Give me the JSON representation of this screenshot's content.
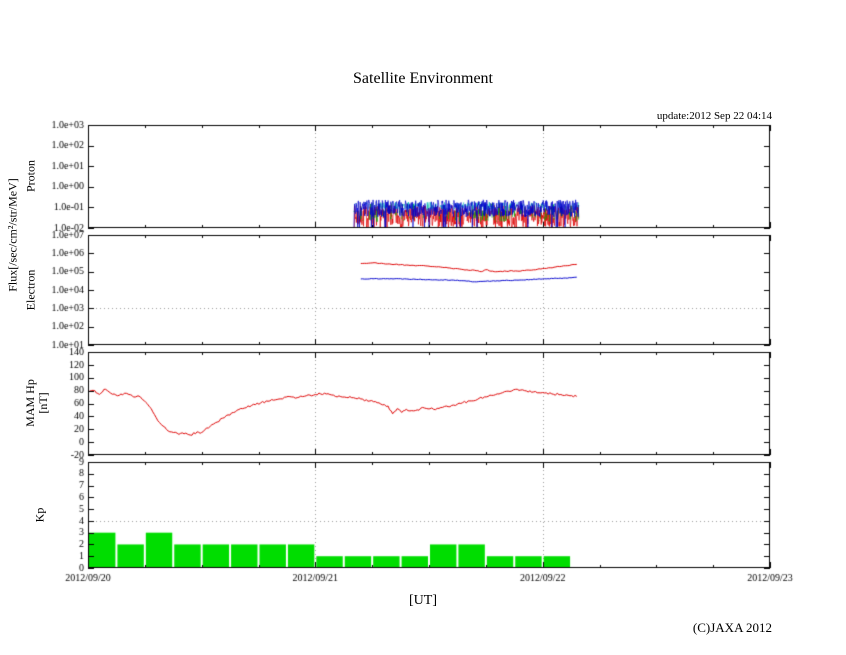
{
  "page": {
    "title": "Satellite Environment",
    "update_text": "update:2012 Sep 22 04:14",
    "x_axis_title": "[UT]",
    "copyright": "(C)JAXA 2012",
    "flux_axis_label": "Flux[/sec/cm²/str/MeV]"
  },
  "chart_data": [
    {
      "type": "line",
      "name": "proton-flux",
      "ylabel": "Proton",
      "yscale": "log",
      "ylim": [
        0.01,
        1000
      ],
      "yticks": [
        {
          "v": 1000,
          "label": "1.0e+03"
        },
        {
          "v": 100,
          "label": "1.0e+02"
        },
        {
          "v": 10,
          "label": "1.0e+01"
        },
        {
          "v": 1,
          "label": "1.0e+00"
        },
        {
          "v": 0.1,
          "label": "1.0e-01"
        },
        {
          "v": 0.01,
          "label": "1.0e-02"
        }
      ],
      "xlim": [
        0,
        3
      ],
      "xtick_values": [
        0,
        1,
        2,
        3
      ],
      "vgrid": [
        1,
        2
      ],
      "hgrid": [],
      "series": [
        {
          "name": "proton-channel-red",
          "color": "#dd0000",
          "style": "noise",
          "x_range": [
            1.17,
            2.16
          ],
          "logy_center": -1.45,
          "logy_spread": 0.55,
          "seed": 7
        },
        {
          "name": "proton-channel-green",
          "color": "#00aa00",
          "style": "noise",
          "x_range": [
            1.17,
            2.16
          ],
          "logy_center": -1.25,
          "logy_spread": 0.45,
          "gap_prob": 0.5,
          "seed": 11
        },
        {
          "name": "proton-channel-cyan",
          "color": "#00bbbb",
          "style": "noise",
          "x_range": [
            1.17,
            2.16
          ],
          "logy_center": -0.92,
          "logy_spread": 0.18,
          "gap_prob": 0.4,
          "seed": 13
        },
        {
          "name": "proton-channel-blue",
          "color": "#0000cc",
          "style": "noise",
          "x_range": [
            1.17,
            2.16
          ],
          "logy_center": -1.05,
          "logy_spread": 0.42,
          "spike_prob": 0.05,
          "spike_logy": -2,
          "seed": 3
        }
      ]
    },
    {
      "type": "line",
      "name": "electron-flux",
      "ylabel": "Electron",
      "yscale": "log",
      "ylim": [
        10,
        10000000
      ],
      "yticks": [
        {
          "v": 10000000,
          "label": "1.0e+07"
        },
        {
          "v": 1000000,
          "label": "1.0e+06"
        },
        {
          "v": 100000,
          "label": "1.0e+05"
        },
        {
          "v": 10000,
          "label": "1.0e+04"
        },
        {
          "v": 1000,
          "label": "1.0e+03"
        },
        {
          "v": 100,
          "label": "1.0e+02"
        },
        {
          "v": 10,
          "label": "1.0e+01"
        }
      ],
      "xlim": [
        0,
        3
      ],
      "xtick_values": [
        0,
        1,
        2,
        3
      ],
      "vgrid": [
        1,
        2
      ],
      "hgrid": [
        1000
      ],
      "series": [
        {
          "name": "electron-high-energy",
          "color": "#dd0000",
          "style": "points",
          "jitter_log": 0.025,
          "seed": 21,
          "points": [
            [
              1.2,
              280000
            ],
            [
              1.25,
              300000
            ],
            [
              1.3,
              275000
            ],
            [
              1.35,
              250000
            ],
            [
              1.4,
              230000
            ],
            [
              1.45,
              215000
            ],
            [
              1.5,
              200000
            ],
            [
              1.55,
              180000
            ],
            [
              1.6,
              150000
            ],
            [
              1.65,
              130000
            ],
            [
              1.7,
              120000
            ],
            [
              1.73,
              100000
            ],
            [
              1.75,
              128000
            ],
            [
              1.78,
              107000
            ],
            [
              1.8,
              100000
            ],
            [
              1.84,
              105000
            ],
            [
              1.88,
              110000
            ],
            [
              1.92,
              115000
            ],
            [
              1.96,
              126000
            ],
            [
              2,
              148000
            ],
            [
              2.05,
              175000
            ],
            [
              2.1,
              210000
            ],
            [
              2.15,
              250000
            ]
          ]
        },
        {
          "name": "electron-low-energy",
          "color": "#0000cc",
          "style": "points",
          "jitter_log": 0.02,
          "seed": 22,
          "points": [
            [
              1.2,
              40000
            ],
            [
              1.3,
              42000
            ],
            [
              1.4,
              40000
            ],
            [
              1.5,
              37000
            ],
            [
              1.6,
              35000
            ],
            [
              1.65,
              32000
            ],
            [
              1.7,
              28000
            ],
            [
              1.75,
              30000
            ],
            [
              1.8,
              32000
            ],
            [
              1.9,
              35000
            ],
            [
              2,
              40000
            ],
            [
              2.1,
              45000
            ],
            [
              2.15,
              50000
            ]
          ]
        }
      ]
    },
    {
      "type": "line",
      "name": "mam-hp",
      "ylabel": "MAM Hp",
      "ylabel_unit": "[nT]",
      "yscale": "linear",
      "ylim": [
        -20,
        140
      ],
      "yticks": [
        {
          "v": 140,
          "label": "140"
        },
        {
          "v": 120,
          "label": "120"
        },
        {
          "v": 100,
          "label": "100"
        },
        {
          "v": 80,
          "label": "80"
        },
        {
          "v": 60,
          "label": "60"
        },
        {
          "v": 40,
          "label": "40"
        },
        {
          "v": 20,
          "label": "20"
        },
        {
          "v": 0,
          "label": "0"
        },
        {
          "v": -20,
          "label": "-20"
        }
      ],
      "xlim": [
        0,
        3
      ],
      "xtick_values": [
        0,
        1,
        2,
        3
      ],
      "vgrid": [
        1,
        2
      ],
      "hgrid": [],
      "series": [
        {
          "name": "hp-magnetic-field",
          "color": "#dd0000",
          "style": "points",
          "jitter": 1.8,
          "seed": 31,
          "points": [
            [
              0,
              78
            ],
            [
              0.03,
              80
            ],
            [
              0.05,
              74
            ],
            [
              0.07,
              82
            ],
            [
              0.1,
              76
            ],
            [
              0.13,
              72
            ],
            [
              0.16,
              76
            ],
            [
              0.18,
              74
            ],
            [
              0.2,
              70
            ],
            [
              0.22,
              72
            ],
            [
              0.24,
              66
            ],
            [
              0.27,
              55
            ],
            [
              0.3,
              38
            ],
            [
              0.33,
              25
            ],
            [
              0.36,
              16
            ],
            [
              0.4,
              12
            ],
            [
              0.43,
              14
            ],
            [
              0.45,
              11
            ],
            [
              0.48,
              16
            ],
            [
              0.5,
              15
            ],
            [
              0.53,
              22
            ],
            [
              0.56,
              30
            ],
            [
              0.6,
              38
            ],
            [
              0.64,
              46
            ],
            [
              0.68,
              52
            ],
            [
              0.72,
              57
            ],
            [
              0.76,
              61
            ],
            [
              0.8,
              64
            ],
            [
              0.84,
              67
            ],
            [
              0.88,
              71
            ],
            [
              0.92,
              69
            ],
            [
              0.96,
              72
            ],
            [
              1,
              74
            ],
            [
              1.04,
              76
            ],
            [
              1.08,
              73
            ],
            [
              1.12,
              70
            ],
            [
              1.16,
              69
            ],
            [
              1.2,
              67
            ],
            [
              1.24,
              64
            ],
            [
              1.28,
              61
            ],
            [
              1.32,
              56
            ],
            [
              1.34,
              44
            ],
            [
              1.36,
              52
            ],
            [
              1.38,
              46
            ],
            [
              1.4,
              51
            ],
            [
              1.44,
              49
            ],
            [
              1.48,
              53
            ],
            [
              1.52,
              51
            ],
            [
              1.56,
              54
            ],
            [
              1.6,
              57
            ],
            [
              1.64,
              60
            ],
            [
              1.68,
              64
            ],
            [
              1.72,
              68
            ],
            [
              1.76,
              71
            ],
            [
              1.8,
              75
            ],
            [
              1.84,
              79
            ],
            [
              1.88,
              82
            ],
            [
              1.92,
              80
            ],
            [
              1.96,
              78
            ],
            [
              2,
              77
            ],
            [
              2.04,
              75
            ],
            [
              2.08,
              74
            ],
            [
              2.12,
              72
            ],
            [
              2.15,
              71
            ]
          ]
        }
      ]
    },
    {
      "type": "bar",
      "name": "kp-index",
      "ylabel": "Kp",
      "yscale": "linear",
      "ylim": [
        0,
        9
      ],
      "yticks": [
        {
          "v": 9,
          "label": "9"
        },
        {
          "v": 8,
          "label": "8"
        },
        {
          "v": 7,
          "label": "7"
        },
        {
          "v": 6,
          "label": "6"
        },
        {
          "v": 5,
          "label": "5"
        },
        {
          "v": 4,
          "label": "4"
        },
        {
          "v": 3,
          "label": "3"
        },
        {
          "v": 2,
          "label": "2"
        },
        {
          "v": 1,
          "label": "1"
        },
        {
          "v": 0,
          "label": "0"
        }
      ],
      "xlim": [
        0,
        3
      ],
      "xtick_values": [
        0,
        1,
        2,
        3
      ],
      "vgrid": [
        1,
        2
      ],
      "hgrid": [
        4
      ],
      "xticks": [
        {
          "v": 0,
          "label": "2012/09/20"
        },
        {
          "v": 1,
          "label": "2012/09/21"
        },
        {
          "v": 2,
          "label": "2012/09/22"
        },
        {
          "v": 3,
          "label": "2012/09/23"
        }
      ],
      "bar_color": "#00dd00",
      "bar_start": 0,
      "bar_interval": 0.125,
      "values": [
        3,
        2,
        3,
        2,
        2,
        2,
        2,
        2,
        1,
        1,
        1,
        1,
        2,
        2,
        1,
        1,
        1
      ]
    }
  ]
}
